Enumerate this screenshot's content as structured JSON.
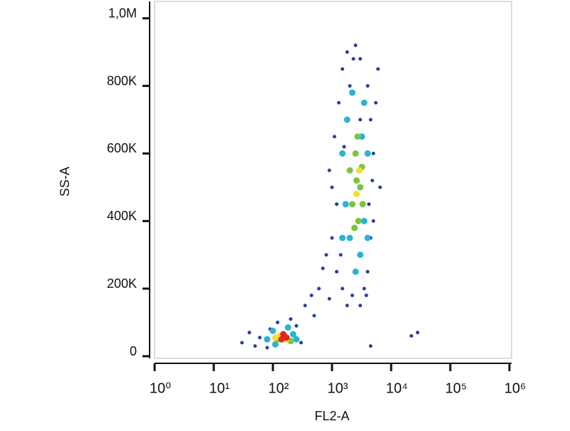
{
  "chart_data": {
    "type": "scatter",
    "x_label": "FL2-A",
    "y_label": "SS-A",
    "xscale": "log",
    "xlim": [
      1,
      1000000
    ],
    "xticks": [
      {
        "value": 1,
        "label": "10⁰"
      },
      {
        "value": 10,
        "label": "10¹"
      },
      {
        "value": 100,
        "label": "10²"
      },
      {
        "value": 1000,
        "label": "10³"
      },
      {
        "value": 10000,
        "label": "10⁴"
      },
      {
        "value": 100000,
        "label": "10⁵"
      },
      {
        "value": 1000000,
        "label": "10⁶"
      }
    ],
    "ylim": [
      0,
      1050000
    ],
    "yticks": [
      0,
      {
        "value": 200000,
        "label": "200K"
      },
      {
        "value": 400000,
        "label": "400K"
      },
      {
        "value": 600000,
        "label": "600K"
      },
      {
        "value": 800000,
        "label": "800K"
      },
      {
        "value": 1000000,
        "label": "1,0M"
      }
    ],
    "series": [
      {
        "color": "#2a3f9e",
        "x": [
          30,
          50,
          60,
          80,
          90,
          120,
          200,
          250,
          300,
          40,
          350,
          450,
          600,
          500,
          700,
          800,
          900,
          1000,
          1200,
          1500,
          1800,
          2200,
          3000,
          3500,
          4000,
          4500,
          5000,
          1000,
          1100,
          1300,
          1500,
          1800,
          2500,
          3000,
          4000,
          4500,
          5000,
          5500,
          6000,
          1200,
          900,
          1400,
          4200,
          3800,
          6500,
          3000,
          2000,
          2300,
          28000,
          22000,
          4500,
          1600,
          4800
        ],
        "values": [
          40000,
          30000,
          55000,
          25000,
          80000,
          100000,
          110000,
          90000,
          40000,
          70000,
          150000,
          180000,
          200000,
          120000,
          260000,
          300000,
          170000,
          350000,
          250000,
          200000,
          150000,
          180000,
          150000,
          200000,
          250000,
          350000,
          400000,
          500000,
          650000,
          750000,
          850000,
          900000,
          920000,
          880000,
          800000,
          700000,
          600000,
          750000,
          850000,
          450000,
          550000,
          300000,
          450000,
          180000,
          500000,
          700000,
          800000,
          880000,
          70000,
          60000,
          30000,
          620000,
          520000
        ]
      },
      {
        "color": "#2ab3d6",
        "x": [
          80,
          100,
          180,
          220,
          110,
          250,
          1500,
          1800,
          2000,
          3000,
          3500,
          2500,
          4000,
          1700,
          3500,
          2200,
          4000,
          1500,
          3200
        ],
        "values": [
          50000,
          75000,
          85000,
          65000,
          35000,
          50000,
          600000,
          700000,
          350000,
          300000,
          400000,
          250000,
          600000,
          450000,
          750000,
          780000,
          350000,
          350000,
          650000
        ]
      },
      {
        "color": "#7cc341",
        "x": [
          2200,
          2600,
          3000,
          2500,
          2800,
          2000,
          3200,
          2400,
          120,
          200,
          2700,
          3300
        ],
        "values": [
          450000,
          520000,
          500000,
          600000,
          400000,
          550000,
          560000,
          380000,
          50000,
          45000,
          650000,
          450000
        ]
      },
      {
        "color": "#efe22b",
        "x": [
          130,
          170,
          110,
          2600,
          2900
        ],
        "values": [
          60000,
          50000,
          55000,
          480000,
          550000
        ]
      },
      {
        "color": "#e2261e",
        "x": [
          150,
          170,
          140
        ],
        "values": [
          65000,
          55000,
          50000
        ]
      }
    ]
  }
}
